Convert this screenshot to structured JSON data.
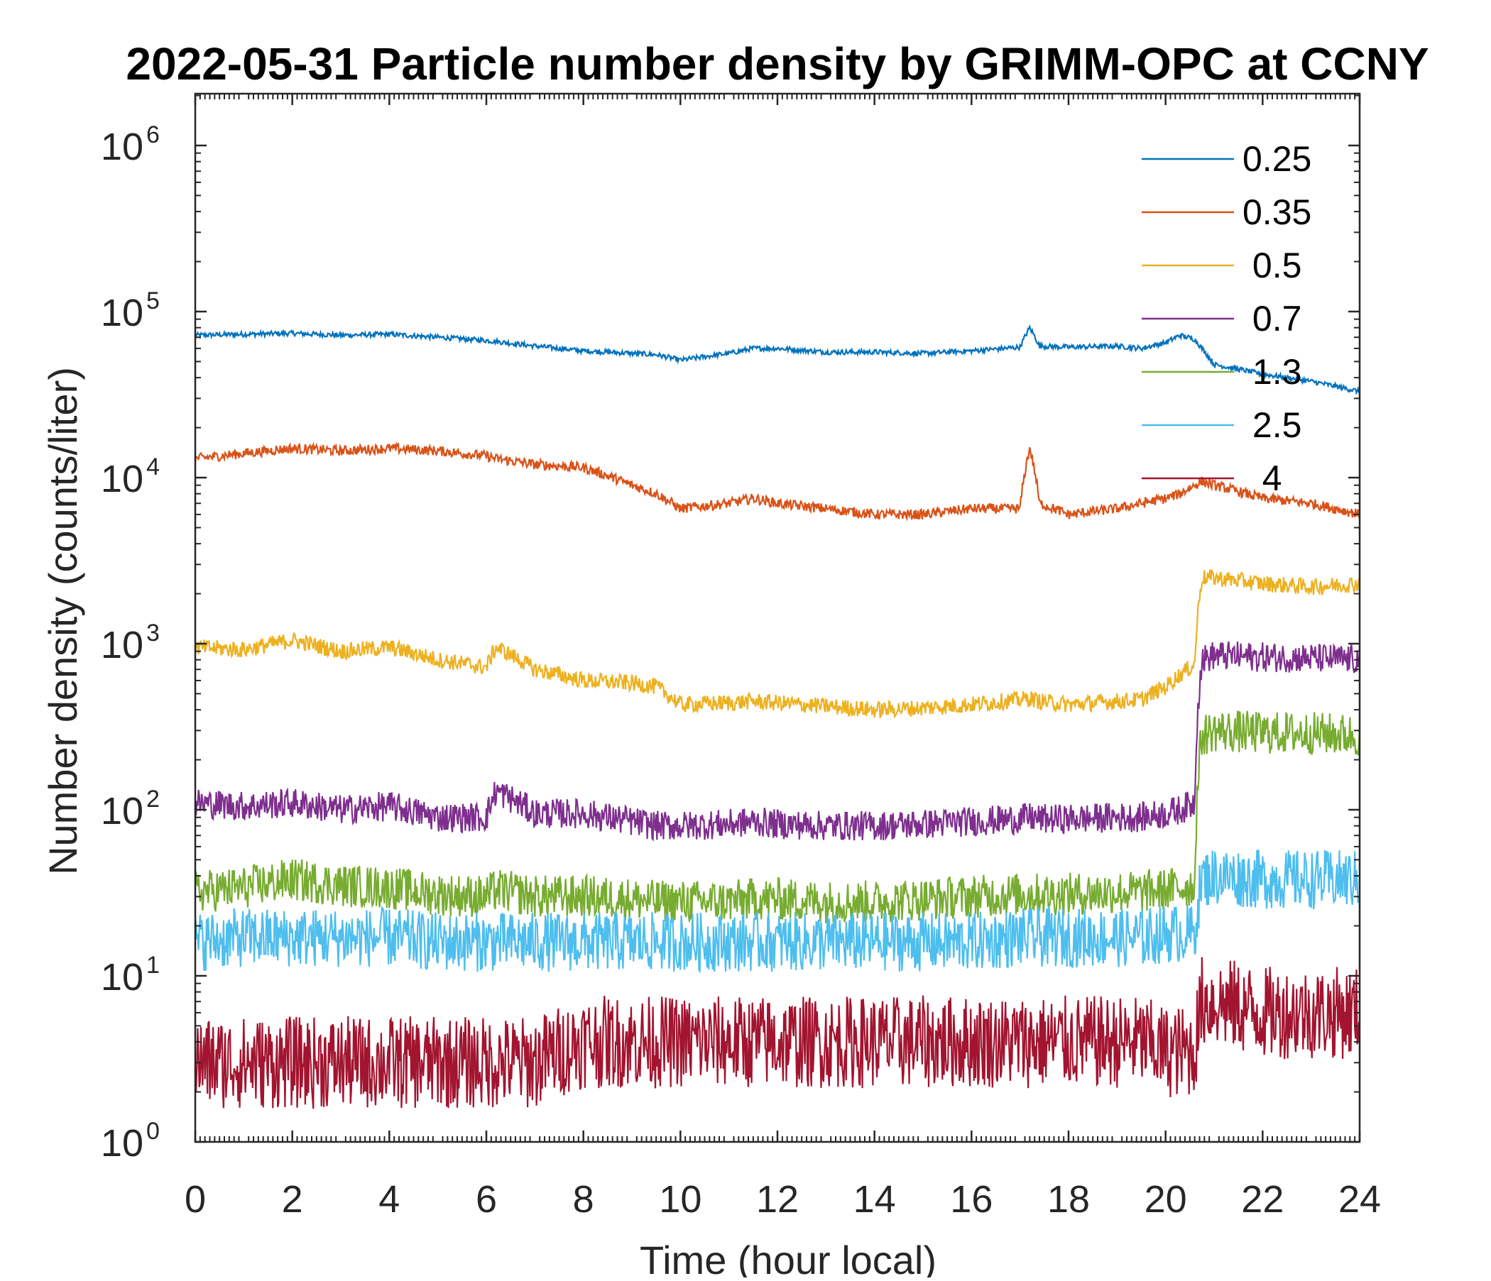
{
  "chart_data": {
    "type": "line",
    "title": "2022-05-31 Particle number density by GRIMM-OPC at CCNY",
    "xlabel": "Time (hour local)",
    "ylabel": "Number density (counts/liter)",
    "xlim": [
      0,
      24
    ],
    "ylim": [
      1,
      2000000
    ],
    "yscale": "log",
    "xticks": [
      "0",
      "2",
      "4",
      "6",
      "8",
      "10",
      "12",
      "14",
      "16",
      "18",
      "20",
      "22",
      "24"
    ],
    "yticks": [
      {
        "base": "10",
        "exp": "0"
      },
      {
        "base": "10",
        "exp": "1"
      },
      {
        "base": "10",
        "exp": "2"
      },
      {
        "base": "10",
        "exp": "3"
      },
      {
        "base": "10",
        "exp": "4"
      },
      {
        "base": "10",
        "exp": "5"
      },
      {
        "base": "10",
        "exp": "6"
      }
    ],
    "legend_position": "top-right",
    "x": [
      0,
      1,
      2,
      3,
      4,
      5,
      6,
      6.2,
      7,
      8,
      9,
      9.5,
      10,
      11,
      11.5,
      12,
      13,
      14,
      15,
      16,
      17,
      17.2,
      17.4,
      18,
      19,
      19.5,
      20,
      20.3,
      20.6,
      20.75,
      21,
      22,
      23,
      24
    ],
    "series": [
      {
        "name": "0.25",
        "color": "#0072BD",
        "values": [
          72000,
          73000,
          74000,
          72000,
          73000,
          70000,
          67000,
          66000,
          62000,
          58000,
          56000,
          55000,
          51000,
          56000,
          60000,
          60000,
          57000,
          57000,
          56000,
          58000,
          61000,
          80000,
          62000,
          61000,
          62000,
          60000,
          65000,
          72000,
          68000,
          60000,
          48000,
          42000,
          38000,
          33000
        ]
      },
      {
        "name": "0.35",
        "color": "#D95319",
        "values": [
          13000,
          14000,
          15000,
          14500,
          15000,
          14500,
          13500,
          13000,
          12000,
          11500,
          9000,
          8000,
          6500,
          7000,
          7500,
          7000,
          6500,
          6000,
          6000,
          6500,
          6500,
          15000,
          7000,
          6000,
          6500,
          7000,
          7500,
          8000,
          9000,
          9500,
          9000,
          7500,
          7000,
          6000
        ]
      },
      {
        "name": " 0.5",
        "color": "#EDB120",
        "values": [
          950,
          920,
          1050,
          900,
          950,
          800,
          720,
          950,
          700,
          600,
          580,
          550,
          430,
          440,
          450,
          440,
          420,
          400,
          410,
          430,
          460,
          470,
          450,
          430,
          450,
          460,
          550,
          650,
          750,
          2500,
          2500,
          2300,
          2200,
          2300
        ]
      },
      {
        "name": " 0.7",
        "color": "#7E2F8E",
        "values": [
          110,
          105,
          110,
          100,
          105,
          90,
          90,
          130,
          95,
          95,
          85,
          80,
          80,
          82,
          85,
          82,
          80,
          80,
          82,
          85,
          88,
          90,
          88,
          88,
          90,
          90,
          95,
          100,
          110,
          800,
          850,
          830,
          820,
          800
        ]
      },
      {
        "name": " 1.3",
        "color": "#77AC30",
        "values": [
          32,
          34,
          38,
          35,
          34,
          31,
          30,
          33,
          30,
          30,
          29,
          28,
          28,
          28,
          29,
          29,
          28,
          28,
          29,
          30,
          31,
          31,
          31,
          31,
          32,
          32,
          33,
          34,
          35,
          280,
          300,
          290,
          290,
          280
        ]
      },
      {
        "name": " 2.5",
        "color": "#4DBEEE",
        "values": [
          16,
          17,
          17,
          17,
          17,
          16,
          16,
          16,
          16,
          16,
          16,
          16,
          16,
          16,
          16,
          16,
          16,
          16,
          16,
          16,
          17,
          17,
          17,
          17,
          17,
          17,
          18,
          18,
          18,
          38,
          40,
          38,
          38,
          38
        ]
      },
      {
        "name": "  4",
        "color": "#A2142F",
        "values": [
          3,
          3,
          3,
          3,
          3,
          3,
          3,
          3,
          3,
          4,
          4,
          4,
          4,
          4,
          4,
          4,
          4,
          4,
          4,
          4,
          4,
          4,
          4,
          4,
          4,
          4,
          3.5,
          3.5,
          3.5,
          7,
          7,
          6,
          6,
          6
        ]
      }
    ]
  }
}
